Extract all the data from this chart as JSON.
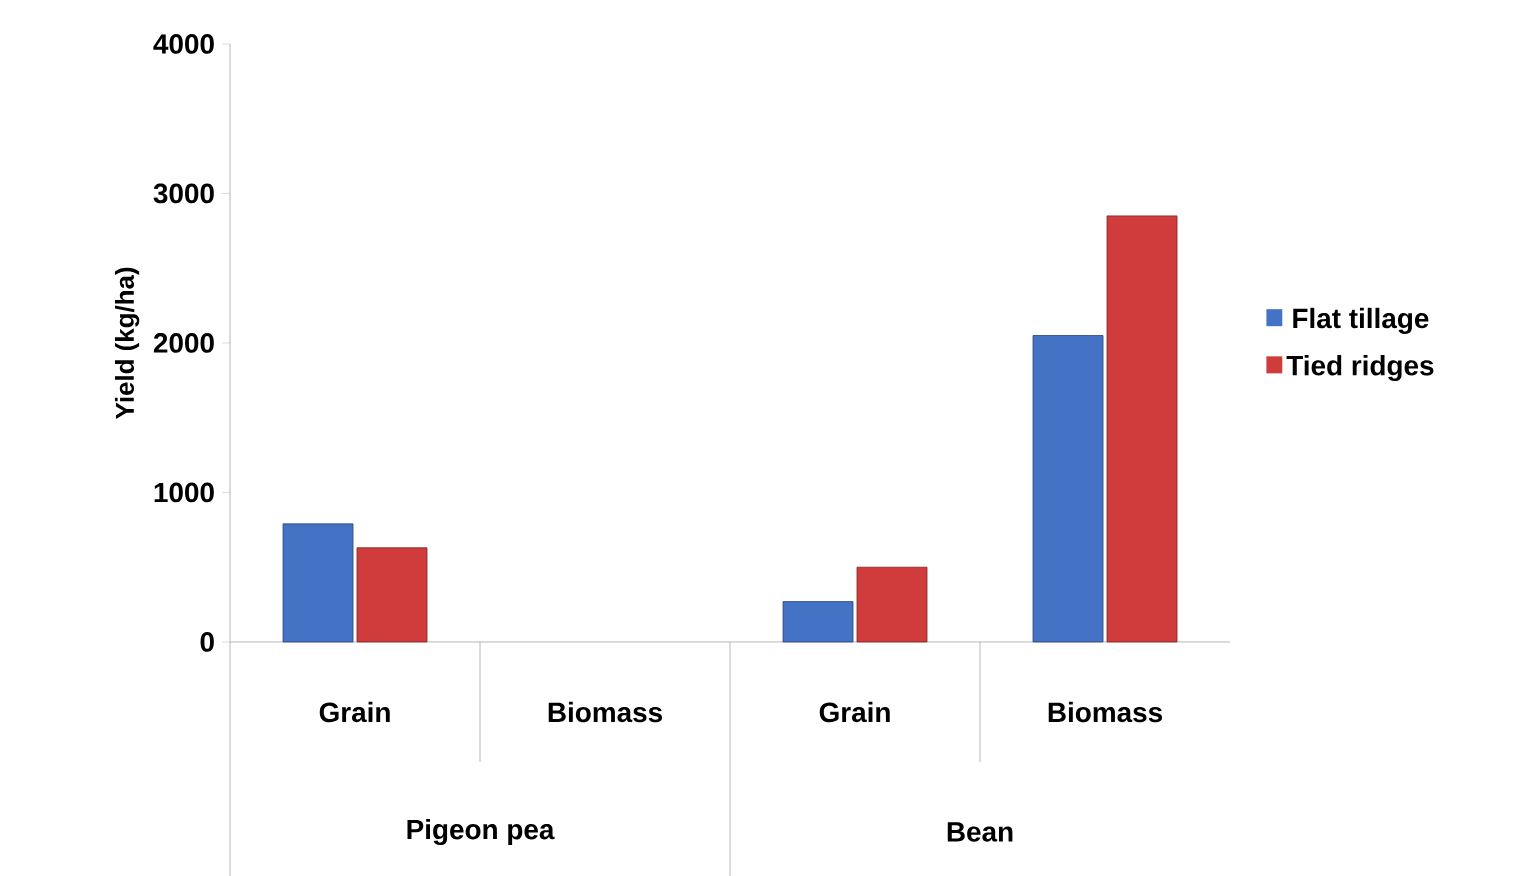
{
  "chart_data": {
    "type": "bar",
    "ylabel": "Yield (kg/ha)",
    "categories": [
      "Grain",
      "Biomass",
      "Grain",
      "Biomass"
    ],
    "annotations": [
      "Pigeon pea",
      "Bean"
    ],
    "series": [
      {
        "name": "Flat tillage",
        "color": "#4472c4",
        "values": [
          790,
          null,
          270,
          2050
        ]
      },
      {
        "name": "Tied ridges",
        "color": "#d03b3b",
        "values": [
          630,
          null,
          500,
          2850
        ]
      }
    ],
    "ylim": [
      0,
      4000
    ],
    "yticks": [
      0,
      1000,
      2000,
      3000,
      4000
    ],
    "grid": false,
    "legend": "right"
  }
}
